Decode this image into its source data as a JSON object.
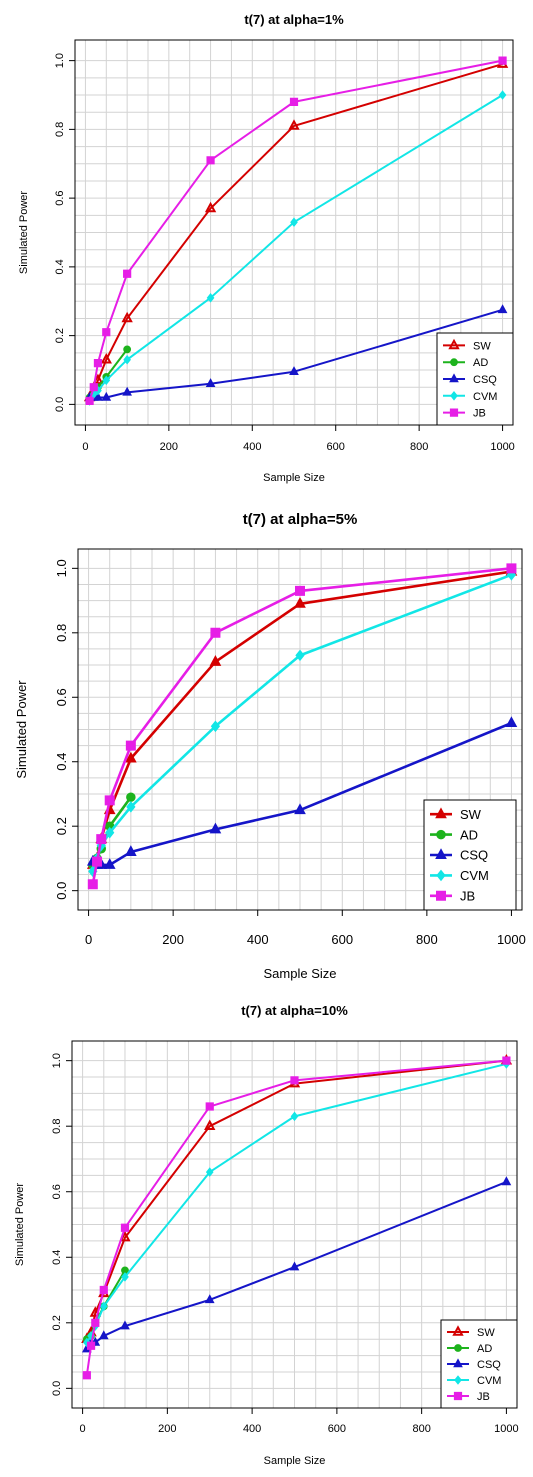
{
  "chart_data": [
    {
      "type": "line",
      "title": "t(7) at alpha=1%",
      "xlabel": "Sample Size",
      "ylabel": "Simulated Power",
      "xlim": [
        0,
        1000
      ],
      "ylim": [
        0,
        1
      ],
      "xticks": [
        "0",
        "200",
        "400",
        "600",
        "800",
        "1000"
      ],
      "yticks": [
        "0.0",
        "0.2",
        "0.4",
        "0.6",
        "0.8",
        "1.0"
      ],
      "grid": true,
      "legend_position": "bottom-right",
      "series": [
        {
          "name": "SW",
          "color": "#d40000",
          "marker": "triangle-open",
          "x": [
            10,
            20,
            30,
            50,
            100,
            300,
            500,
            1000
          ],
          "y": [
            0.02,
            0.04,
            0.07,
            0.13,
            0.25,
            0.57,
            0.81,
            0.99
          ]
        },
        {
          "name": "AD",
          "color": "#1db31d",
          "marker": "circle",
          "x": [
            10,
            20,
            30,
            50,
            100
          ],
          "y": [
            0.02,
            0.03,
            0.05,
            0.08,
            0.16
          ]
        },
        {
          "name": "CSQ",
          "color": "#1515c8",
          "marker": "triangle",
          "x": [
            10,
            20,
            30,
            50,
            100,
            300,
            500,
            1000
          ],
          "y": [
            0.02,
            0.02,
            0.02,
            0.02,
            0.035,
            0.06,
            0.095,
            0.275
          ]
        },
        {
          "name": "CVM",
          "color": "#12e6e6",
          "marker": "diamond",
          "x": [
            10,
            20,
            30,
            50,
            100,
            300,
            500,
            1000
          ],
          "y": [
            0.01,
            0.03,
            0.04,
            0.07,
            0.13,
            0.31,
            0.53,
            0.9
          ]
        },
        {
          "name": "JB",
          "color": "#e61ee6",
          "marker": "square",
          "x": [
            10,
            20,
            30,
            50,
            100,
            300,
            500,
            1000
          ],
          "y": [
            0.01,
            0.05,
            0.12,
            0.21,
            0.38,
            0.71,
            0.88,
            1.0
          ]
        }
      ]
    },
    {
      "type": "line",
      "title": "t(7) at alpha=5%",
      "xlabel": "Sample Size",
      "ylabel": "Simulated Power",
      "xlim": [
        0,
        1000
      ],
      "ylim": [
        0,
        1
      ],
      "xticks": [
        "0",
        "200",
        "400",
        "600",
        "800",
        "1000"
      ],
      "yticks": [
        "0.0",
        "0.2",
        "0.4",
        "0.6",
        "0.8",
        "1.0"
      ],
      "grid": true,
      "legend_position": "bottom-right",
      "series": [
        {
          "name": "SW",
          "color": "#d40000",
          "marker": "triangle",
          "x": [
            10,
            20,
            30,
            50,
            100,
            300,
            500,
            1000
          ],
          "y": [
            0.08,
            0.1,
            0.16,
            0.25,
            0.41,
            0.71,
            0.89,
            0.99
          ]
        },
        {
          "name": "AD",
          "color": "#1db31d",
          "marker": "circle",
          "x": [
            10,
            20,
            30,
            50,
            100
          ],
          "y": [
            0.08,
            0.1,
            0.13,
            0.2,
            0.29
          ]
        },
        {
          "name": "CSQ",
          "color": "#1515c8",
          "marker": "triangle",
          "x": [
            10,
            20,
            30,
            50,
            100,
            300,
            500,
            1000
          ],
          "y": [
            0.09,
            0.08,
            0.08,
            0.08,
            0.12,
            0.19,
            0.25,
            0.52
          ]
        },
        {
          "name": "CVM",
          "color": "#12e6e6",
          "marker": "diamond",
          "x": [
            10,
            20,
            30,
            50,
            100,
            300,
            500,
            1000
          ],
          "y": [
            0.06,
            0.1,
            0.14,
            0.18,
            0.26,
            0.51,
            0.73,
            0.98
          ]
        },
        {
          "name": "JB",
          "color": "#e61ee6",
          "marker": "square",
          "x": [
            10,
            20,
            30,
            50,
            100,
            300,
            500,
            1000
          ],
          "y": [
            0.02,
            0.09,
            0.16,
            0.28,
            0.45,
            0.8,
            0.93,
            1.0
          ]
        }
      ]
    },
    {
      "type": "line",
      "title": "t(7) at alpha=10%",
      "xlabel": "Sample Size",
      "ylabel": "Simulated Power",
      "xlim": [
        0,
        1000
      ],
      "ylim": [
        0,
        1
      ],
      "xticks": [
        "0",
        "200",
        "400",
        "600",
        "800",
        "1000"
      ],
      "yticks": [
        "0.0",
        "0.2",
        "0.4",
        "0.6",
        "0.8",
        "1.0"
      ],
      "grid": true,
      "legend_position": "bottom-right",
      "series": [
        {
          "name": "SW",
          "color": "#d40000",
          "marker": "triangle-open",
          "x": [
            10,
            20,
            30,
            50,
            100,
            300,
            500,
            1000
          ],
          "y": [
            0.15,
            0.17,
            0.23,
            0.29,
            0.46,
            0.8,
            0.93,
            1.0
          ]
        },
        {
          "name": "AD",
          "color": "#1db31d",
          "marker": "circle",
          "x": [
            10,
            20,
            30,
            50,
            100
          ],
          "y": [
            0.15,
            0.16,
            0.2,
            0.25,
            0.36
          ]
        },
        {
          "name": "CSQ",
          "color": "#1515c8",
          "marker": "triangle",
          "x": [
            10,
            20,
            30,
            50,
            100,
            300,
            500,
            1000
          ],
          "y": [
            0.12,
            0.14,
            0.14,
            0.16,
            0.19,
            0.27,
            0.37,
            0.63
          ]
        },
        {
          "name": "CVM",
          "color": "#12e6e6",
          "marker": "diamond",
          "x": [
            10,
            20,
            30,
            50,
            100,
            300,
            500,
            1000
          ],
          "y": [
            0.14,
            0.16,
            0.19,
            0.25,
            0.34,
            0.66,
            0.83,
            0.99
          ]
        },
        {
          "name": "JB",
          "color": "#e61ee6",
          "marker": "square",
          "x": [
            10,
            20,
            30,
            50,
            100,
            300,
            500,
            1000
          ],
          "y": [
            0.04,
            0.13,
            0.2,
            0.3,
            0.49,
            0.86,
            0.94,
            1.0
          ]
        }
      ]
    }
  ]
}
